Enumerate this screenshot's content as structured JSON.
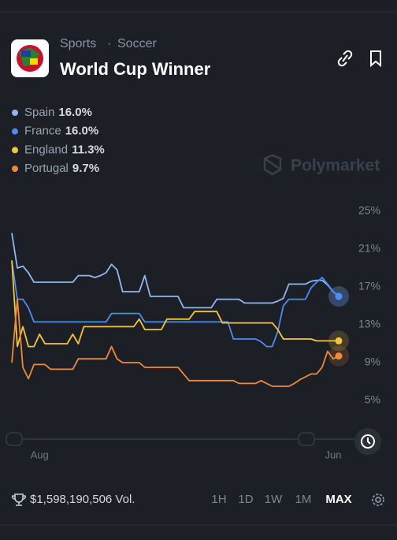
{
  "header": {
    "breadcrumb": [
      "Sports",
      "Soccer"
    ],
    "separator": "·",
    "title": "World Cup Winner"
  },
  "watermark": "Polymarket",
  "chart_data": {
    "type": "line",
    "categories": [
      null,
      null,
      null,
      null,
      null,
      "Aug",
      null,
      null,
      null,
      null,
      null,
      null,
      null,
      null,
      null,
      null,
      null,
      null,
      null,
      null,
      null,
      null,
      null,
      null,
      null,
      null,
      null,
      null,
      null,
      null,
      null,
      null,
      null,
      null,
      null,
      null,
      null,
      null,
      null,
      null,
      null,
      null,
      null,
      null,
      null,
      null,
      null,
      null,
      null,
      null,
      null,
      null,
      null,
      null,
      null,
      null,
      null,
      null,
      "Jun",
      null
    ],
    "series": [
      {
        "name": "Spain",
        "current_label": "16.0%",
        "color": "#8fb6ee",
        "values": [
          22.7,
          19.0,
          19.2,
          18.5,
          17.5,
          17.5,
          17.5,
          17.5,
          17.5,
          17.5,
          17.5,
          17.5,
          18.2,
          18.2,
          18.2,
          18.0,
          18.2,
          18.5,
          19.4,
          18.8,
          16.5,
          16.5,
          16.5,
          16.5,
          18.2,
          16.0,
          16.0,
          16.0,
          16.0,
          16.0,
          16.0,
          14.8,
          14.8,
          14.8,
          14.8,
          14.8,
          14.8,
          15.7,
          15.7,
          15.7,
          15.7,
          15.7,
          15.3,
          15.3,
          15.3,
          15.3,
          15.3,
          15.3,
          15.5,
          15.8,
          17.3,
          17.3,
          17.3,
          17.3,
          17.6,
          17.7,
          17.7,
          17.2,
          16.5,
          16.0
        ]
      },
      {
        "name": "France",
        "current_label": "16.0%",
        "color": "#4d8def",
        "values": [
          19.8,
          15.7,
          15.7,
          14.8,
          13.3,
          13.3,
          13.3,
          13.3,
          13.3,
          13.3,
          13.3,
          13.3,
          13.3,
          13.3,
          13.3,
          13.3,
          13.3,
          13.3,
          14.2,
          14.2,
          14.2,
          14.2,
          14.2,
          14.2,
          13.3,
          13.3,
          13.3,
          13.3,
          13.3,
          13.3,
          13.3,
          13.3,
          13.3,
          13.3,
          13.3,
          13.3,
          13.3,
          13.3,
          13.3,
          13.3,
          11.5,
          11.5,
          11.5,
          11.5,
          11.5,
          11.2,
          10.7,
          10.7,
          12.3,
          15.0,
          15.7,
          15.7,
          15.7,
          15.7,
          16.9,
          17.5,
          18.0,
          17.3,
          16.5,
          16.0
        ]
      },
      {
        "name": "England",
        "current_label": "11.3%",
        "color": "#f2c53d",
        "values": [
          19.8,
          10.7,
          12.8,
          10.7,
          10.7,
          12.0,
          11.0,
          11.0,
          11.0,
          11.0,
          11.0,
          12.0,
          11.0,
          12.8,
          12.8,
          12.8,
          12.8,
          12.8,
          12.8,
          12.8,
          12.8,
          12.8,
          12.8,
          13.6,
          12.5,
          12.5,
          12.5,
          12.5,
          13.6,
          13.6,
          13.6,
          13.6,
          13.6,
          14.4,
          14.4,
          14.4,
          14.4,
          14.4,
          13.2,
          13.2,
          13.2,
          13.2,
          13.2,
          13.2,
          13.2,
          13.2,
          13.2,
          13.2,
          12.5,
          11.5,
          11.5,
          11.5,
          11.5,
          11.5,
          11.5,
          11.3,
          11.3,
          11.3,
          11.3,
          11.3
        ]
      },
      {
        "name": "Portugal",
        "current_label": "9.7%",
        "color": "#f08a3a",
        "values": [
          9.0,
          15.7,
          8.5,
          7.3,
          8.8,
          8.8,
          8.8,
          8.3,
          8.3,
          8.3,
          8.3,
          8.3,
          9.4,
          9.4,
          9.4,
          9.4,
          9.4,
          9.4,
          10.7,
          9.4,
          9.0,
          9.0,
          9.0,
          9.0,
          8.5,
          8.5,
          8.5,
          8.5,
          8.5,
          8.5,
          8.5,
          7.8,
          7.1,
          7.1,
          7.1,
          7.1,
          7.1,
          7.1,
          7.1,
          7.1,
          7.1,
          6.8,
          6.8,
          6.8,
          6.8,
          7.1,
          6.8,
          6.5,
          6.5,
          6.5,
          6.5,
          6.8,
          7.2,
          7.5,
          7.8,
          7.8,
          8.5,
          10.2,
          9.4,
          9.7
        ]
      }
    ],
    "ylim": [
      3,
      26
    ],
    "yticks": [
      {
        "value": 5,
        "label": "5%"
      },
      {
        "value": 9,
        "label": "9%"
      },
      {
        "value": 13,
        "label": "13%"
      },
      {
        "value": 17,
        "label": "17%"
      },
      {
        "value": 21,
        "label": "21%"
      },
      {
        "value": 25,
        "label": "25%"
      }
    ],
    "grid": false
  },
  "footer": {
    "volume": "$1,598,190,506 Vol.",
    "ranges": [
      "1H",
      "1D",
      "1W",
      "1M",
      "MAX"
    ],
    "active_range": 4
  }
}
